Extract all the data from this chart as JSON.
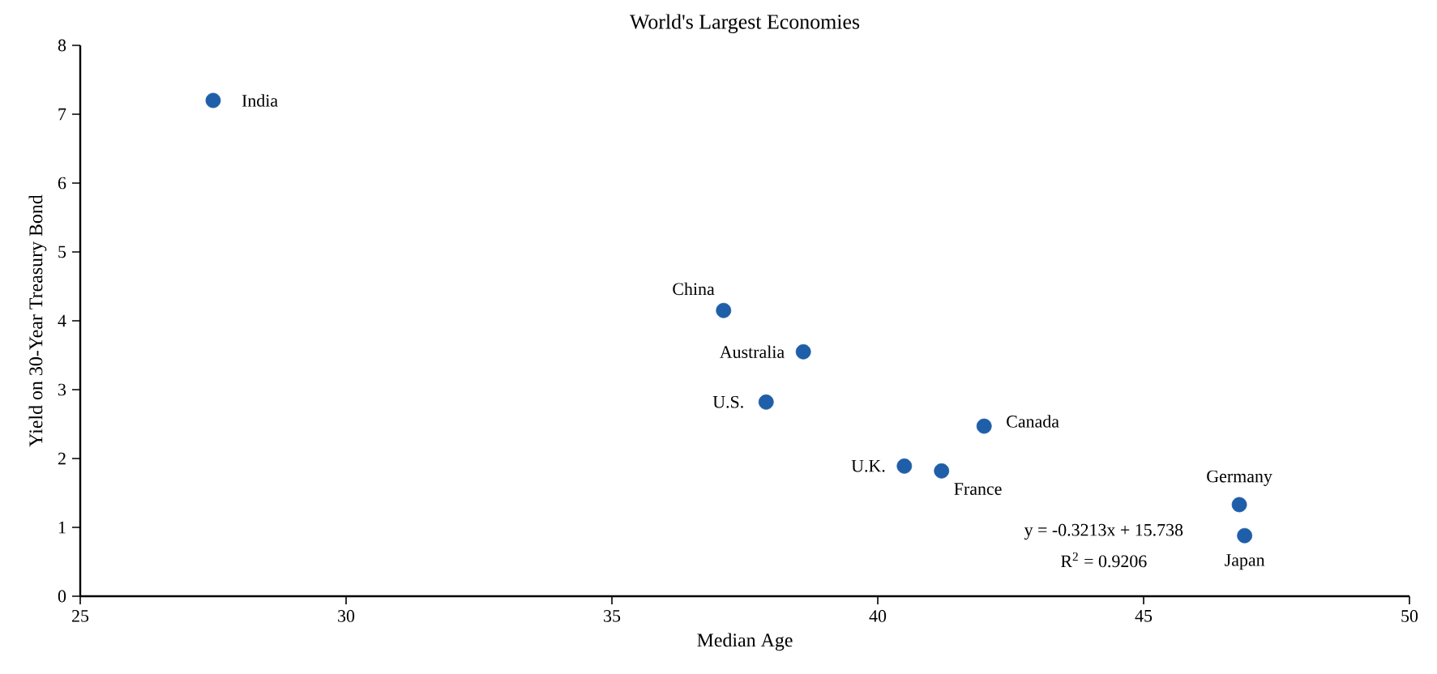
{
  "chart_data": {
    "type": "scatter",
    "title": "World's Largest Economies",
    "xlabel": "Median Age",
    "ylabel": "Yield on 30-Year Treasury Bond",
    "x": [
      27.5,
      37.1,
      38.6,
      37.9,
      42.0,
      40.5,
      41.2,
      46.8,
      46.9
    ],
    "series": [
      {
        "color": "#1f5ea8",
        "values": [
          7.2,
          4.15,
          3.55,
          2.82,
          2.47,
          1.89,
          1.82,
          1.33,
          0.88
        ]
      }
    ],
    "xlim": [
      25,
      50
    ],
    "ylim": [
      0,
      8
    ],
    "xticks": [
      25,
      30,
      35,
      40,
      45,
      50
    ],
    "yticks": [
      0,
      1,
      2,
      3,
      4,
      5,
      6,
      7,
      8
    ],
    "marker": "circle",
    "annotations": [
      {
        "text": "India",
        "x": 27.5,
        "y": 7.2
      },
      {
        "text": "China",
        "x": 37.1,
        "y": 4.15
      },
      {
        "text": "Australia",
        "x": 38.6,
        "y": 3.55
      },
      {
        "text": "U.S.",
        "x": 37.9,
        "y": 2.82
      },
      {
        "text": "Canada",
        "x": 42.0,
        "y": 2.47
      },
      {
        "text": "U.K.",
        "x": 40.5,
        "y": 1.89
      },
      {
        "text": "France",
        "x": 41.2,
        "y": 1.82
      },
      {
        "text": "Germany",
        "x": 46.8,
        "y": 1.33
      },
      {
        "text": "Japan",
        "x": 46.9,
        "y": 0.88
      },
      "y = -0.3213x + 15.738",
      "R$^{2}$ = 0.9206"
    ]
  }
}
